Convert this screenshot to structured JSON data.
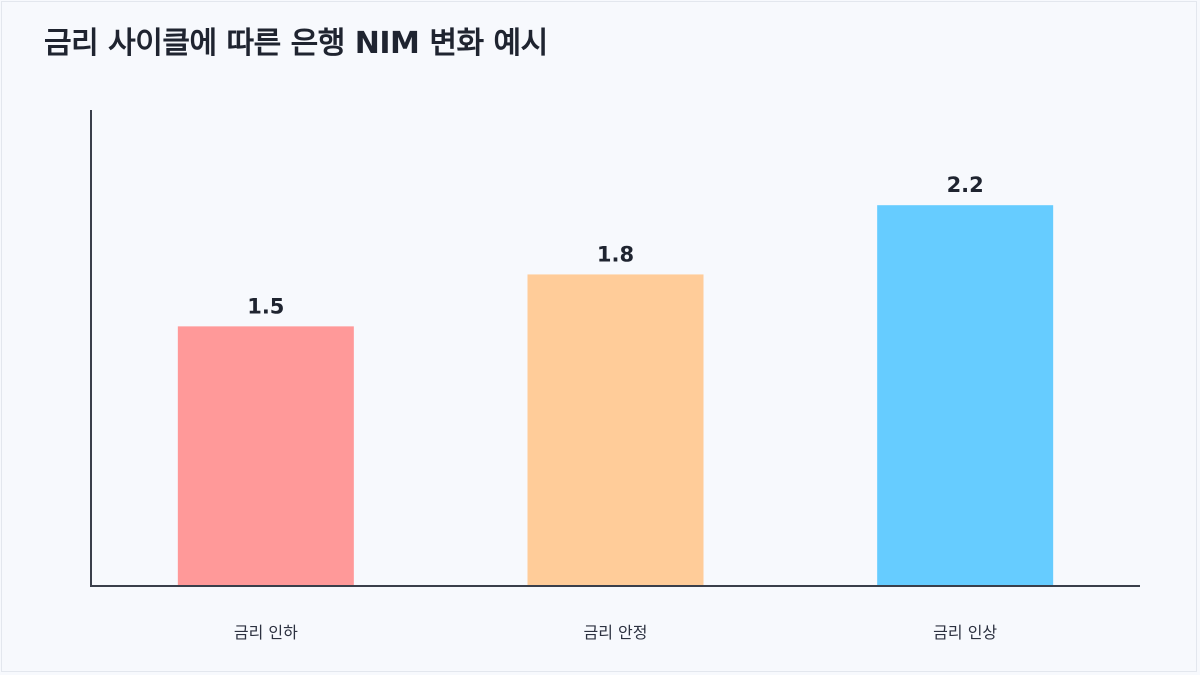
{
  "chart_data": {
    "type": "bar",
    "title": "금리 사이클에 따른 은행 NIM 변화 예시",
    "xlabel": "",
    "ylabel": "",
    "categories": [
      "금리 인하",
      "금리 안정",
      "금리 인상"
    ],
    "values": [
      1.5,
      1.8,
      2.2
    ],
    "value_labels": [
      "1.5",
      "1.8",
      "2.2"
    ],
    "colors": [
      "#ff9999",
      "#ffcc99",
      "#66ccff"
    ],
    "ylim": [
      0,
      2.75
    ],
    "grid": false,
    "legend": "none"
  }
}
